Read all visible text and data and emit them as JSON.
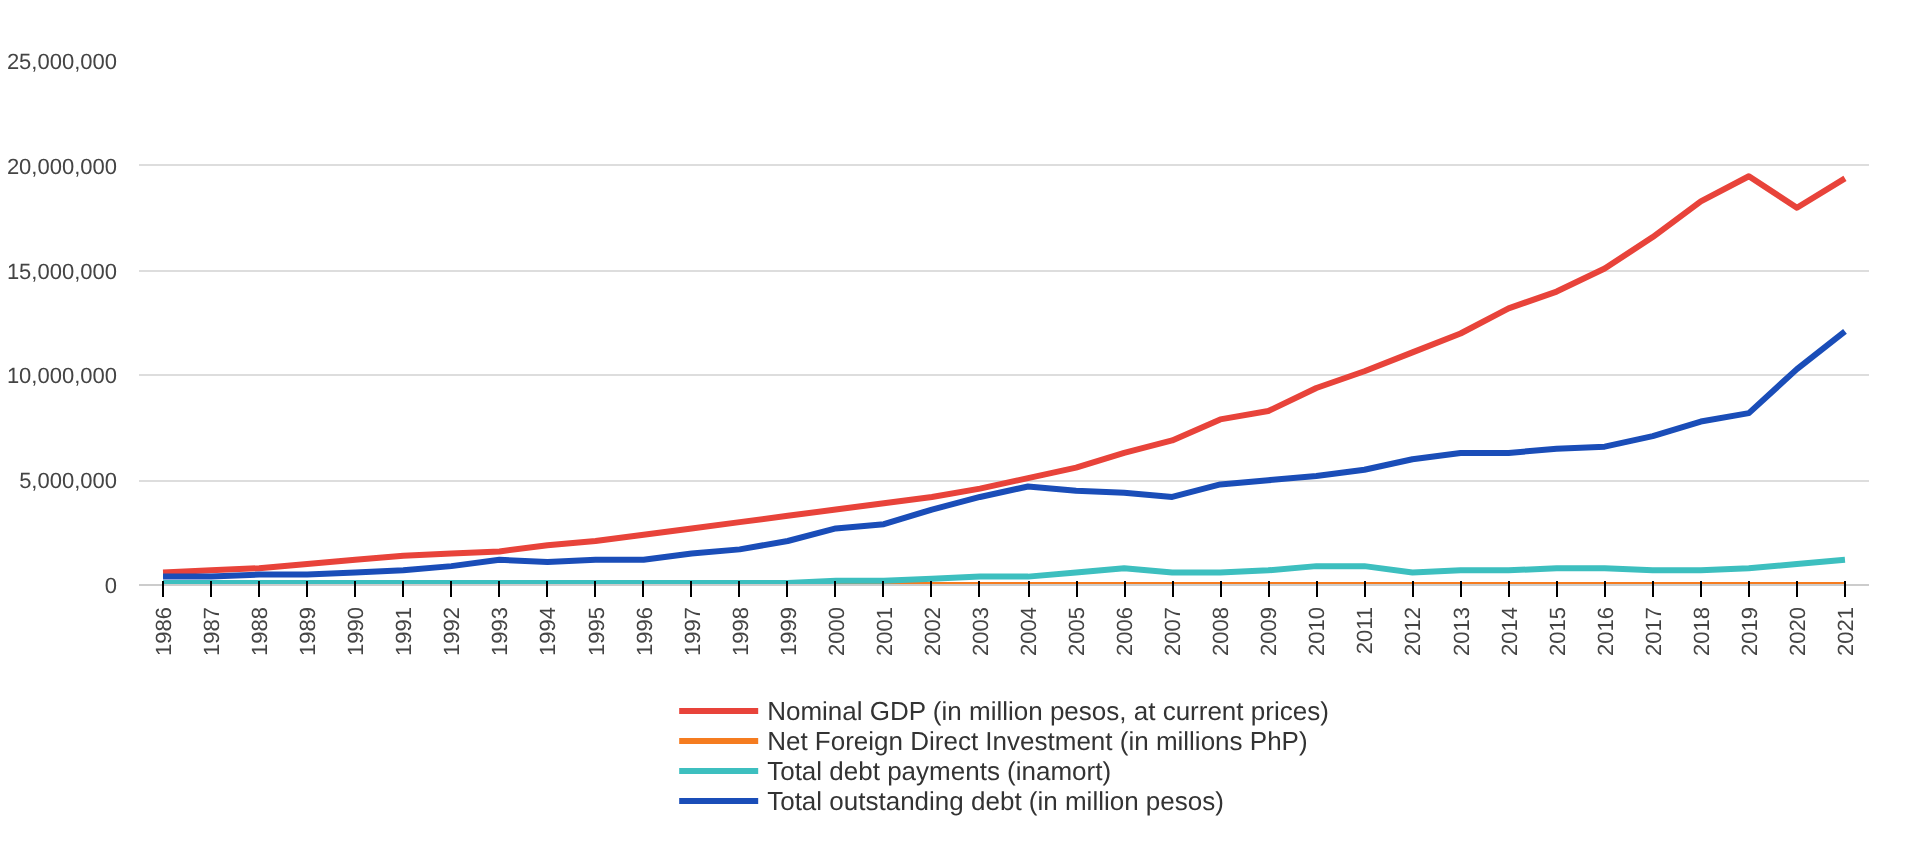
{
  "chart_data": {
    "type": "line",
    "categories": [
      "1986",
      "1987",
      "1988",
      "1989",
      "1990",
      "1991",
      "1992",
      "1993",
      "1994",
      "1995",
      "1996",
      "1997",
      "1998",
      "1999",
      "2000",
      "2001",
      "2002",
      "2003",
      "2004",
      "2005",
      "2006",
      "2007",
      "2008",
      "2009",
      "2010",
      "2011",
      "2012",
      "2013",
      "2014",
      "2015",
      "2016",
      "2017",
      "2018",
      "2019",
      "2020",
      "2021"
    ],
    "series": [
      {
        "name": "Nominal GDP (in million pesos, at current prices)",
        "color": "#e8433a",
        "values": [
          600000,
          700000,
          800000,
          1000000,
          1200000,
          1400000,
          1500000,
          1600000,
          1900000,
          2100000,
          2400000,
          2700000,
          3000000,
          3300000,
          3600000,
          3900000,
          4200000,
          4600000,
          5100000,
          5600000,
          6300000,
          6900000,
          7900000,
          8300000,
          9400000,
          10200000,
          11100000,
          12000000,
          13200000,
          14000000,
          15100000,
          16600000,
          18300000,
          19500000,
          18000000,
          19400000
        ]
      },
      {
        "name": "Net Foreign Direct Investment (in millions PhP)",
        "color": "#f57c20",
        "values": [
          null,
          null,
          null,
          null,
          null,
          null,
          null,
          null,
          null,
          null,
          null,
          null,
          null,
          null,
          0,
          0,
          0,
          0,
          0,
          0,
          0,
          0,
          0,
          0,
          0,
          0,
          0,
          0,
          0,
          0,
          0,
          0,
          0,
          0,
          0,
          0
        ]
      },
      {
        "name": "Total debt payments (inamort)",
        "color": "#3dbfbf",
        "values": [
          100000,
          100000,
          100000,
          100000,
          100000,
          100000,
          100000,
          100000,
          100000,
          100000,
          100000,
          100000,
          100000,
          100000,
          200000,
          200000,
          300000,
          400000,
          400000,
          600000,
          800000,
          600000,
          600000,
          700000,
          900000,
          900000,
          600000,
          700000,
          700000,
          800000,
          800000,
          700000,
          700000,
          800000,
          1000000,
          1200000
        ]
      },
      {
        "name": "Total outstanding debt (in million pesos)",
        "color": "#1a4db8",
        "values": [
          400000,
          400000,
          500000,
          500000,
          600000,
          700000,
          900000,
          1200000,
          1100000,
          1200000,
          1200000,
          1500000,
          1700000,
          2100000,
          2700000,
          2900000,
          3600000,
          4200000,
          4700000,
          4500000,
          4400000,
          4200000,
          4800000,
          5000000,
          5200000,
          5500000,
          6000000,
          6300000,
          6300000,
          6500000,
          6600000,
          7100000,
          7800000,
          8200000,
          10300000,
          12100000
        ]
      }
    ],
    "ylim": [
      0,
      25000000
    ],
    "yticks": [
      {
        "value": 0,
        "label": "0"
      },
      {
        "value": 5000000,
        "label": "5,000,000"
      },
      {
        "value": 10000000,
        "label": "10,000,000"
      },
      {
        "value": 15000000,
        "label": "15,000,000"
      },
      {
        "value": 20000000,
        "label": "20,000,000"
      },
      {
        "value": 25000000,
        "label": "25,000,000"
      }
    ],
    "grid": "y",
    "legend": "bottom",
    "line_style": "solid",
    "marker": "none"
  }
}
